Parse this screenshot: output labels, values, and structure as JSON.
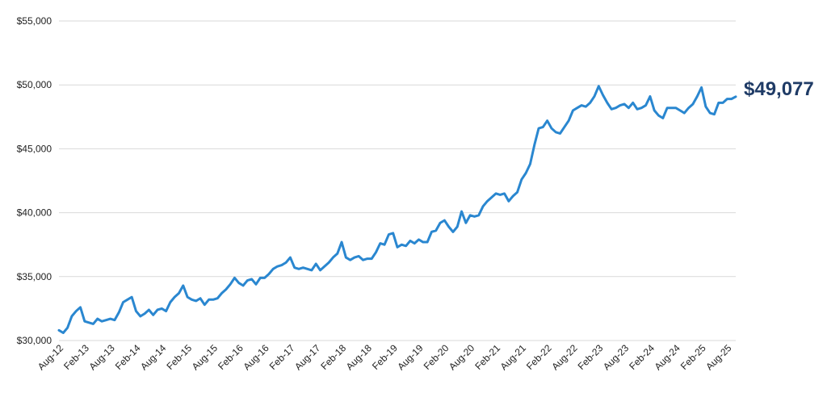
{
  "colors": {
    "line": "#2a87d0",
    "label": "#1f3b66",
    "grid": "#d9d9d9"
  },
  "chart_data": {
    "type": "line",
    "ylim": [
      30000,
      55000
    ],
    "ytick_values": [
      30000,
      35000,
      40000,
      45000,
      50000,
      55000
    ],
    "ytick_labels": [
      "$30,000",
      "$35,000",
      "$40,000",
      "$45,000",
      "$50,000",
      "$55,000"
    ],
    "xtick_labels": [
      "Aug-12",
      "Feb-13",
      "Aug-13",
      "Feb-14",
      "Aug-14",
      "Feb-15",
      "Aug-15",
      "Feb-16",
      "Aug-16",
      "Feb-17",
      "Aug-17",
      "Feb-18",
      "Aug-18",
      "Feb-19",
      "Aug-19",
      "Feb-20",
      "Aug-20",
      "Feb-21",
      "Aug-21",
      "Feb-22",
      "Aug-22",
      "Feb-23",
      "Aug-23",
      "Feb-24",
      "Aug-24",
      "Feb-25",
      "Aug-25"
    ],
    "grid": true,
    "legend": "none",
    "series": [
      {
        "values": [
          30800,
          30600,
          31000,
          31900,
          32300,
          32600,
          31500,
          31400,
          31300,
          31700,
          31500,
          31600,
          31700,
          31600,
          32200,
          33000,
          33200,
          33400,
          32300,
          31900,
          32100,
          32400,
          32000,
          32400,
          32500,
          32300,
          33000,
          33400,
          33700,
          34300,
          33400,
          33200,
          33100,
          33300,
          32800,
          33200,
          33200,
          33300,
          33700,
          34000,
          34400,
          34900,
          34500,
          34300,
          34700,
          34800,
          34400,
          34900,
          34900,
          35200,
          35600,
          35800,
          35900,
          36100,
          36500,
          35700,
          35600,
          35700,
          35600,
          35500,
          36000,
          35500,
          35800,
          36100,
          36500,
          36800,
          37700,
          36500,
          36300,
          36500,
          36600,
          36300,
          36400,
          36400,
          36900,
          37600,
          37500,
          38300,
          38400,
          37300,
          37500,
          37400,
          37800,
          37600,
          37900,
          37700,
          37700,
          38500,
          38600,
          39200,
          39400,
          38900,
          38500,
          38900,
          40100,
          39200,
          39800,
          39700,
          39800,
          40500,
          40900,
          41200,
          41500,
          41400,
          41500,
          40900,
          41300,
          41600,
          42600,
          43100,
          43800,
          45300,
          46600,
          46700,
          47200,
          46600,
          46300,
          46200,
          46700,
          47200,
          48000,
          48200,
          48400,
          48300,
          48600,
          49100,
          49900,
          49200,
          48600,
          48100,
          48200,
          48400,
          48500,
          48200,
          48600,
          48100,
          48200,
          48400,
          49100,
          48000,
          47600,
          47400,
          48200,
          48200,
          48200,
          48000,
          47800,
          48200,
          48500,
          49100,
          49800,
          48300,
          47800,
          47700,
          48600,
          48600,
          48900,
          48900,
          49077
        ],
        "last_label": "$49,077"
      }
    ]
  }
}
